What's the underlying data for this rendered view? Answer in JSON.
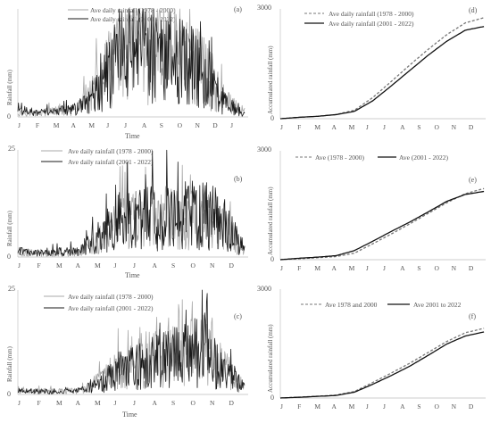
{
  "panels": [
    {
      "id": "a",
      "kind": "daily",
      "panel_label": "(a)",
      "ytick_top": "",
      "ytick_bottom": "0",
      "ylabel": "Rainfall (mm)",
      "xlabel": "Time",
      "legend": [
        "Ave daily rainfall (1978 - 2000)",
        "Ave daily rainfall (2001 - 2022)"
      ],
      "months": [
        "J",
        "F",
        "M",
        "A",
        "M",
        "J",
        "J",
        "A",
        "S",
        "O",
        "N",
        "D",
        "J"
      ],
      "ylim": [
        0,
        25
      ]
    },
    {
      "id": "b",
      "kind": "daily",
      "panel_label": "(b)",
      "ytick_top": "25",
      "ytick_bottom": "0",
      "ylabel": "Rainfall (mm)",
      "xlabel": "Time",
      "legend": [
        "Ave daily rainfall (1978 - 2000)",
        "Ave daily rainfall (2001 - 2022)"
      ],
      "months": [
        "J",
        "F",
        "M",
        "A",
        "M",
        "J",
        "J",
        "A",
        "S",
        "O",
        "N",
        "D"
      ],
      "ylim": [
        0,
        25
      ]
    },
    {
      "id": "c",
      "kind": "daily",
      "panel_label": "(c)",
      "ytick_top": "25",
      "ytick_bottom": "0",
      "ylabel": "Rainfall (mm)",
      "xlabel": "Time",
      "legend": [
        "Ave daily rainfall (1978 - 2000)",
        "Ave daily rainfall (2001 - 2022)"
      ],
      "months": [
        "J",
        "F",
        "M",
        "A",
        "M",
        "J",
        "J",
        "A",
        "S",
        "O",
        "N",
        "D"
      ],
      "ylim": [
        0,
        25
      ]
    },
    {
      "id": "d",
      "kind": "accum",
      "panel_label": "(d)",
      "ytick_top": "3000",
      "ytick_bottom": "0",
      "ylabel": "Accumulated rainfall (mm)",
      "xlabel": "",
      "legend": [
        "Ave daily rainfall (1978 - 2000)",
        "Ave daily rainfall (2001 - 2022)"
      ],
      "months": [
        "J",
        "F",
        "M",
        "A",
        "M",
        "J",
        "J",
        "A",
        "S",
        "O",
        "N",
        "D"
      ],
      "ylim": [
        0,
        3000
      ]
    },
    {
      "id": "e",
      "kind": "accum",
      "panel_label": "(e)",
      "ytick_top": "3000",
      "ytick_bottom": "0",
      "ylabel": "Accumulated rainfall (mm)",
      "xlabel": "",
      "legend": [
        "Ave (1978 - 2000)",
        "Ave (2001 - 2022)"
      ],
      "months": [
        "J",
        "F",
        "M",
        "A",
        "M",
        "J",
        "J",
        "A",
        "S",
        "O",
        "N",
        "D"
      ],
      "ylim": [
        0,
        3000
      ]
    },
    {
      "id": "f",
      "kind": "accum",
      "panel_label": "(f)",
      "ytick_top": "3000",
      "ytick_bottom": "0",
      "ylabel": "Accumulated rainfall (mm)",
      "xlabel": "",
      "legend": [
        "Ave 1978 and 2000",
        "Ave 2001 to 2022"
      ],
      "months": [
        "J",
        "F",
        "M",
        "A",
        "M",
        "J",
        "J",
        "A",
        "S",
        "O",
        "N",
        "D"
      ],
      "ylim": [
        0,
        3000
      ]
    }
  ],
  "chart_data": [
    {
      "type": "line",
      "panel": "(a)",
      "xlabel": "Time",
      "ylabel": "Rainfall (mm)",
      "ylim": [
        0,
        25
      ],
      "x": [
        "J",
        "F",
        "M",
        "A",
        "M",
        "J",
        "J",
        "A",
        "S",
        "O",
        "N",
        "D",
        "J"
      ],
      "series": [
        {
          "name": "Ave daily rainfall (1978 - 2000)",
          "style": "solid",
          "color": "#a8a8a8",
          "values": [
            1.0,
            0.8,
            1.4,
            1.3,
            5.8,
            12.0,
            14.0,
            15.0,
            14.5,
            14.0,
            9.5,
            3.8,
            0.8
          ]
        },
        {
          "name": "Ave daily rainfall (2001 - 2022)",
          "style": "solid",
          "color": "#1a1a1a",
          "values": [
            2.0,
            0.9,
            1.2,
            1.7,
            4.8,
            11.5,
            13.0,
            13.5,
            13.2,
            12.5,
            8.0,
            3.0,
            0.6
          ]
        }
      ]
    },
    {
      "type": "line",
      "panel": "(b)",
      "xlabel": "Time",
      "ylabel": "Rainfall (mm)",
      "ylim": [
        0,
        25
      ],
      "x": [
        "J",
        "F",
        "M",
        "A",
        "M",
        "J",
        "J",
        "A",
        "S",
        "O",
        "N",
        "D"
      ],
      "series": [
        {
          "name": "Ave daily rainfall (1978 - 2000)",
          "style": "solid",
          "color": "#a8a8a8",
          "values": [
            0.8,
            0.7,
            0.8,
            1.0,
            4.2,
            8.0,
            8.5,
            9.0,
            9.5,
            9.5,
            7.0,
            1.5
          ]
        },
        {
          "name": "Ave daily rainfall (2001 - 2022)",
          "style": "solid",
          "color": "#1a1a1a",
          "values": [
            1.3,
            0.9,
            1.2,
            1.5,
            5.0,
            8.5,
            8.8,
            9.2,
            9.8,
            10.5,
            7.5,
            1.8
          ]
        }
      ]
    },
    {
      "type": "line",
      "panel": "(c)",
      "xlabel": "Time",
      "ylabel": "Rainfall (mm)",
      "ylim": [
        0,
        25
      ],
      "x": [
        "J",
        "F",
        "M",
        "A",
        "M",
        "J",
        "J",
        "A",
        "S",
        "O",
        "N",
        "D"
      ],
      "series": [
        {
          "name": "Ave daily rainfall (1978 - 2000)",
          "style": "solid",
          "color": "#a8a8a8",
          "values": [
            0.9,
            0.8,
            0.8,
            0.9,
            3.0,
            7.0,
            8.0,
            9.0,
            9.5,
            10.5,
            6.0,
            1.5
          ]
        },
        {
          "name": "Ave daily rainfall (2001 - 2022)",
          "style": "solid",
          "color": "#1a1a1a",
          "values": [
            0.8,
            0.7,
            0.7,
            0.9,
            2.5,
            6.0,
            7.0,
            8.5,
            9.0,
            11.0,
            5.5,
            1.5
          ]
        }
      ]
    },
    {
      "type": "line",
      "panel": "(d)",
      "xlabel": "",
      "ylabel": "Accumulated rainfall (mm)",
      "ylim": [
        0,
        3000
      ],
      "x": [
        "J",
        "F",
        "M",
        "A",
        "M",
        "J",
        "J",
        "A",
        "S",
        "O",
        "N",
        "D"
      ],
      "series": [
        {
          "name": "Ave daily rainfall (1978 - 2000)",
          "style": "dashed",
          "color": "#777777",
          "values": [
            0,
            35,
            65,
            115,
            230,
            580,
            1020,
            1470,
            1900,
            2300,
            2620,
            2760
          ]
        },
        {
          "name": "Ave daily rainfall (2001 - 2022)",
          "style": "solid",
          "color": "#111111",
          "values": [
            0,
            38,
            65,
            110,
            200,
            490,
            900,
            1320,
            1740,
            2120,
            2420,
            2520
          ]
        }
      ]
    },
    {
      "type": "line",
      "panel": "(e)",
      "xlabel": "",
      "ylabel": "Accumulated rainfall (mm)",
      "ylim": [
        0,
        3000
      ],
      "x": [
        "J",
        "F",
        "M",
        "A",
        "M",
        "J",
        "J",
        "A",
        "S",
        "O",
        "N",
        "D"
      ],
      "series": [
        {
          "name": "Ave (1978 - 2000)",
          "style": "dashed",
          "color": "#777777",
          "values": [
            0,
            25,
            55,
            85,
            180,
            440,
            710,
            990,
            1280,
            1570,
            1820,
            1960
          ]
        },
        {
          "name": "Ave (2001 - 2022)",
          "style": "solid",
          "color": "#111111",
          "values": [
            0,
            40,
            70,
            110,
            250,
            510,
            780,
            1040,
            1320,
            1610,
            1800,
            1880
          ]
        }
      ]
    },
    {
      "type": "line",
      "panel": "(f)",
      "xlabel": "",
      "ylabel": "Accumulated rainfall (mm)",
      "ylim": [
        0,
        3000
      ],
      "x": [
        "J",
        "F",
        "M",
        "A",
        "M",
        "J",
        "J",
        "A",
        "S",
        "O",
        "N",
        "D"
      ],
      "series": [
        {
          "name": "Ave 1978 and 2000",
          "style": "dashed",
          "color": "#777777",
          "values": [
            0,
            25,
            50,
            80,
            180,
            430,
            690,
            960,
            1260,
            1560,
            1800,
            1920
          ]
        },
        {
          "name": "Ave 2001 to 2022",
          "style": "solid",
          "color": "#111111",
          "values": [
            0,
            20,
            45,
            70,
            160,
            380,
            620,
            880,
            1180,
            1490,
            1710,
            1820
          ]
        }
      ]
    }
  ]
}
